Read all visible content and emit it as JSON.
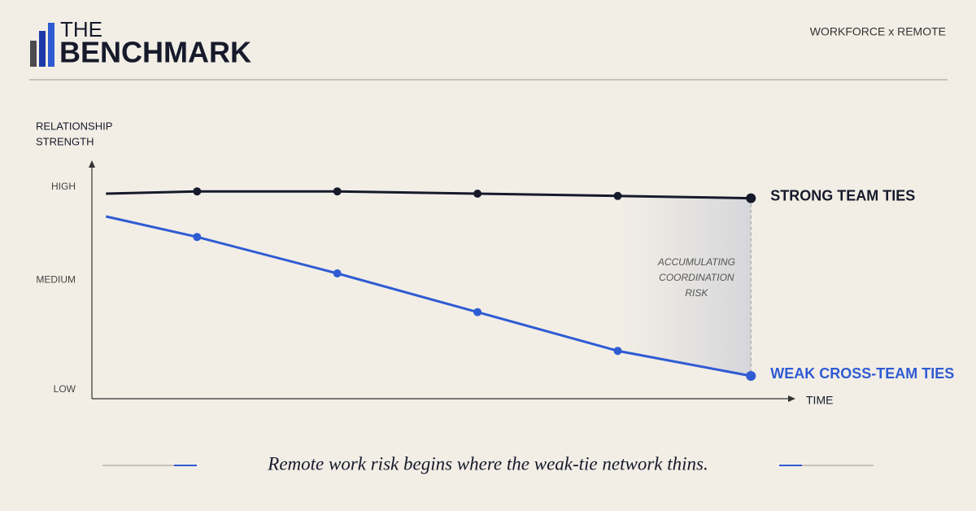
{
  "header": {
    "logo_top": "THE",
    "logo_bottom": "BENCHMARK",
    "tag": "WORKFORCE x REMOTE"
  },
  "chart_data": {
    "type": "line",
    "y_title": [
      "RELATIONSHIP",
      "STRENGTH"
    ],
    "x_title": "TIME",
    "xlim": [
      0,
      100
    ],
    "ylim": [
      0,
      100
    ],
    "yticks": [
      {
        "value": 93,
        "label": "HIGH"
      },
      {
        "value": 52,
        "label": "MEDIUM"
      },
      {
        "value": 4,
        "label": "LOW"
      }
    ],
    "annotation": [
      "ACCUMULATING",
      "COORDINATION",
      "RISK"
    ],
    "series": [
      {
        "name": "STRONG TEAM TIES",
        "color": "#161a2b",
        "x": [
          2,
          15,
          35,
          55,
          75,
          94
        ],
        "values": [
          90,
          91,
          91,
          90,
          89,
          88
        ]
      },
      {
        "name": "WEAK CROSS-TEAM TIES",
        "color": "#2f5bd3",
        "x": [
          2,
          15,
          35,
          55,
          75,
          94
        ],
        "values": [
          80,
          71,
          55,
          38,
          21,
          10
        ]
      }
    ]
  },
  "caption": "Remote work risk begins where the weak-tie network thins."
}
